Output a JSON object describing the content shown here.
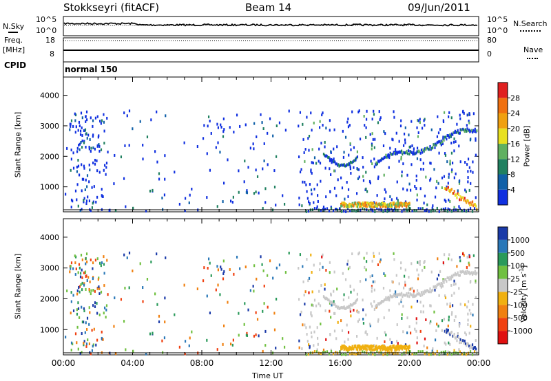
{
  "header": {
    "station": "Stokkseyri (fitACF)",
    "beam": "Beam 14",
    "date": "09/Jun/2011"
  },
  "noise_panel": {
    "left_label": "N.Sky",
    "right_label": "N.Search",
    "left_ticks": [
      "10^5",
      "10^0"
    ],
    "right_ticks": [
      "10^5",
      "10^0"
    ]
  },
  "freq_panel": {
    "left_label_1": "Freq.",
    "left_label_2": "[MHz]",
    "right_label": "Nave",
    "left_ticks": [
      "18",
      "8"
    ],
    "right_ticks": [
      "80",
      "0"
    ]
  },
  "cpid": {
    "label": "CPID",
    "value": "normal 150"
  },
  "x_axis": {
    "label": "Time UT",
    "ticks": [
      "00:00",
      "04:00",
      "08:00",
      "12:00",
      "16:00",
      "20:00",
      "00:00"
    ]
  },
  "chart_data": [
    {
      "type": "heatmap",
      "quantity": "Power",
      "ylabel": "Slant Range [km]",
      "yticks": [
        1000,
        2000,
        3000,
        4000
      ],
      "ylim": [
        180,
        4600
      ],
      "xlim_hours": [
        0,
        24
      ],
      "colorbar": {
        "label": "Power [dB]",
        "ticks": [
          "4",
          "8",
          "12",
          "16",
          "20",
          "24",
          "28"
        ],
        "colors": [
          "#1030e0",
          "#1060a8",
          "#208060",
          "#60b060",
          "#e8e020",
          "#f0a010",
          "#f07010",
          "#e02020"
        ]
      },
      "features": [
        {
          "description": "strong echo band",
          "time_start": "16:00",
          "time_end": "20:00",
          "range_km": 450,
          "power_db": 20
        },
        {
          "description": "curved echo band",
          "time_start": "15:00",
          "time_end": "17:00",
          "range_km": [
            2100,
            1700
          ],
          "power_db": 10
        },
        {
          "description": "rising echo band",
          "time_start": "18:00",
          "time_end": "24:00",
          "range_km": [
            1750,
            2900
          ],
          "power_db": 8
        },
        {
          "description": "late near-range echoes",
          "time_start": "22:00",
          "time_end": "24:00",
          "range_km": [
            900,
            200
          ],
          "power_db": 24
        }
      ]
    },
    {
      "type": "heatmap",
      "quantity": "Velocity",
      "ylabel": "Slant Range [km]",
      "yticks": [
        1000,
        2000,
        3000,
        4000
      ],
      "ylim": [
        180,
        4600
      ],
      "xlim_hours": [
        0,
        24
      ],
      "colorbar": {
        "label": "Velocity [m s^-1]",
        "ticks": [
          "1000",
          "500",
          "100",
          "25",
          "-25",
          "-100",
          "-500",
          "-1000"
        ],
        "colors": [
          "#1a3aa8",
          "#2a78b8",
          "#2a9a5a",
          "#70c040",
          "#c8c8c8",
          "#f0b010",
          "#f08010",
          "#f04010",
          "#e01010"
        ]
      },
      "features": [
        {
          "description": "strong echo band",
          "time_start": "16:00",
          "time_end": "20:00",
          "range_km": 450,
          "velocity_ms": -100
        },
        {
          "description": "ground-scatter bands",
          "time_start": "15:00",
          "time_end": "24:00",
          "velocity_ms": 0
        }
      ]
    }
  ]
}
